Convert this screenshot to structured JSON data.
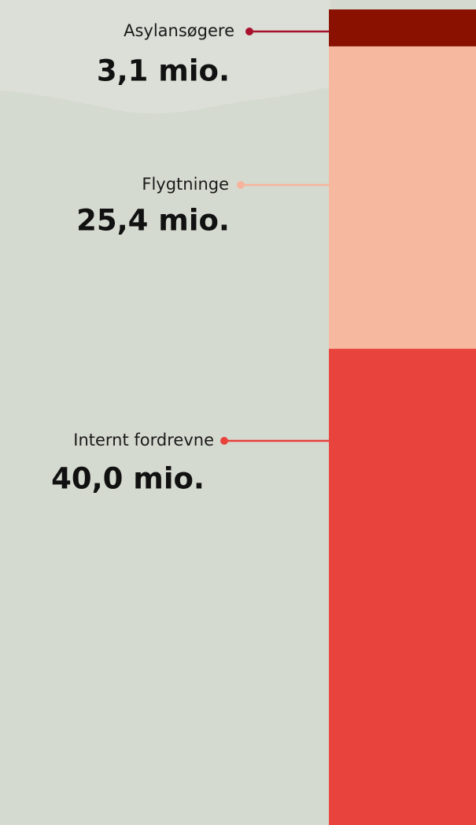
{
  "chart_data": {
    "type": "stacked-bar",
    "categories": [
      "Asylansøgere",
      "Flygtninge",
      "Internt fordrevne"
    ],
    "values": [
      3.1,
      25.4,
      40.0
    ],
    "value_labels": [
      "3,1 mio.",
      "25,4 mio.",
      "40,0 mio."
    ],
    "colors": [
      "#8a1000",
      "#f7b8a0",
      "#e8433c"
    ],
    "marker_colors": [
      "#a8102c",
      "#f7b49c",
      "#e8423b"
    ]
  }
}
